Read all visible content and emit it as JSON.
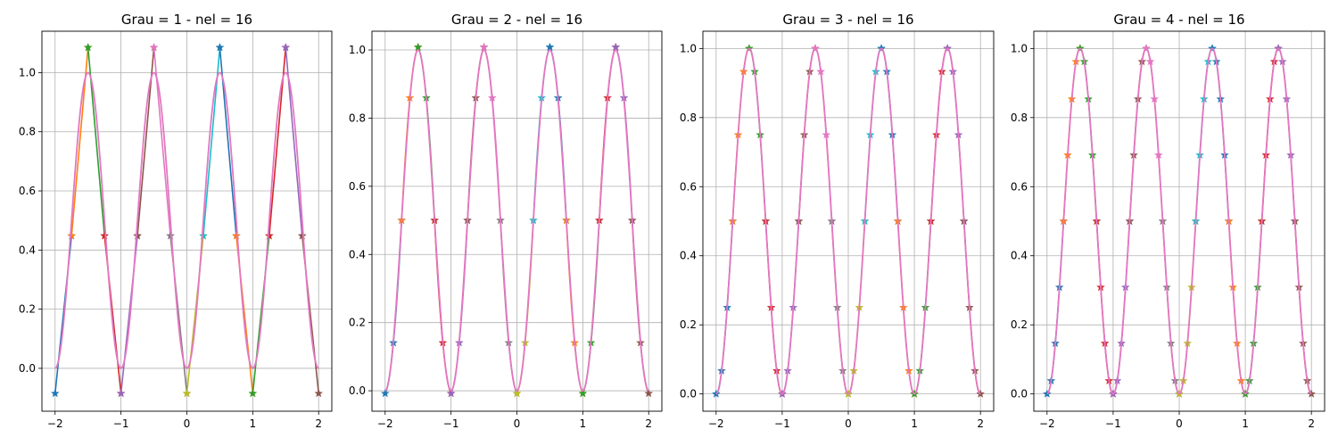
{
  "figure": {
    "background": "#ffffff"
  },
  "chart_data": [
    {
      "type": "line",
      "title": "Grau = 1 - nel = 16",
      "degree": 1,
      "elements": 16,
      "xlim": [
        -2.2,
        2.2
      ],
      "ylim": [
        -0.145,
        1.14
      ],
      "xticks": [
        -2,
        -1,
        0,
        1,
        2
      ],
      "xtick_labels": [
        "−2",
        "−1",
        "0",
        "1",
        "2"
      ],
      "yticks": [
        0.0,
        0.2,
        0.4,
        0.6,
        0.8,
        1.0
      ],
      "ytick_labels": [
        "0.0",
        "0.2",
        "0.4",
        "0.6",
        "0.8",
        "1.0"
      ],
      "grid": true,
      "exact_function": "sin^2(pi*x)",
      "approx_points": [
        {
          "x": -2.0,
          "y": -0.085
        },
        {
          "x": -1.75,
          "y": 0.448
        },
        {
          "x": -1.5,
          "y": 1.085
        },
        {
          "x": -1.25,
          "y": 0.448
        },
        {
          "x": -1.0,
          "y": -0.085
        },
        {
          "x": -0.75,
          "y": 0.448
        },
        {
          "x": -0.5,
          "y": 1.085
        },
        {
          "x": -0.25,
          "y": 0.448
        },
        {
          "x": 0.0,
          "y": -0.085
        },
        {
          "x": 0.25,
          "y": 0.448
        },
        {
          "x": 0.5,
          "y": 1.085
        },
        {
          "x": 0.75,
          "y": 0.448
        },
        {
          "x": 1.0,
          "y": -0.085
        },
        {
          "x": 1.25,
          "y": 0.448
        },
        {
          "x": 1.5,
          "y": 1.085
        },
        {
          "x": 1.75,
          "y": 0.448
        },
        {
          "x": 2.0,
          "y": -0.085
        }
      ]
    },
    {
      "type": "line",
      "title": "Grau = 2 - nel = 16",
      "degree": 2,
      "elements": 16,
      "xlim": [
        -2.2,
        2.2
      ],
      "ylim": [
        -0.06,
        1.055
      ],
      "xticks": [
        -2,
        -1,
        0,
        1,
        2
      ],
      "xtick_labels": [
        "−2",
        "−1",
        "0",
        "1",
        "2"
      ],
      "yticks": [
        0.0,
        0.2,
        0.4,
        0.6,
        0.8,
        1.0
      ],
      "ytick_labels": [
        "0.0",
        "0.2",
        "0.4",
        "0.6",
        "0.8",
        "1.0"
      ],
      "grid": true,
      "exact_function": "sin^2(pi*x)"
    },
    {
      "type": "line",
      "title": "Grau = 3 - nel = 16",
      "degree": 3,
      "elements": 16,
      "xlim": [
        -2.2,
        2.2
      ],
      "ylim": [
        -0.05,
        1.05
      ],
      "xticks": [
        -2,
        -1,
        0,
        1,
        2
      ],
      "xtick_labels": [
        "−2",
        "−1",
        "0",
        "1",
        "2"
      ],
      "yticks": [
        0.0,
        0.2,
        0.4,
        0.6,
        0.8,
        1.0
      ],
      "ytick_labels": [
        "0.0",
        "0.2",
        "0.4",
        "0.6",
        "0.8",
        "1.0"
      ],
      "grid": true,
      "exact_function": "sin^2(pi*x)"
    },
    {
      "type": "line",
      "title": "Grau = 4 - nel = 16",
      "degree": 4,
      "elements": 16,
      "xlim": [
        -2.2,
        2.2
      ],
      "ylim": [
        -0.05,
        1.05
      ],
      "xticks": [
        -2,
        -1,
        0,
        1,
        2
      ],
      "xtick_labels": [
        "−2",
        "−1",
        "0",
        "1",
        "2"
      ],
      "yticks": [
        0.0,
        0.2,
        0.4,
        0.6,
        0.8,
        1.0
      ],
      "ytick_labels": [
        "0.0",
        "0.2",
        "0.4",
        "0.6",
        "0.8",
        "1.0"
      ],
      "grid": true,
      "exact_function": "sin^2(pi*x)"
    }
  ],
  "palette": {
    "element_colors": [
      "#1f77b4",
      "#ff7f0e",
      "#2ca02c",
      "#d62728",
      "#9467bd",
      "#8c564b",
      "#e377c2",
      "#7f7f7f",
      "#bcbd22",
      "#17becf"
    ],
    "exact_color": "#e377c2",
    "grid_color": "#b0b0b0",
    "axes_color": "#000000",
    "marker": "star"
  }
}
